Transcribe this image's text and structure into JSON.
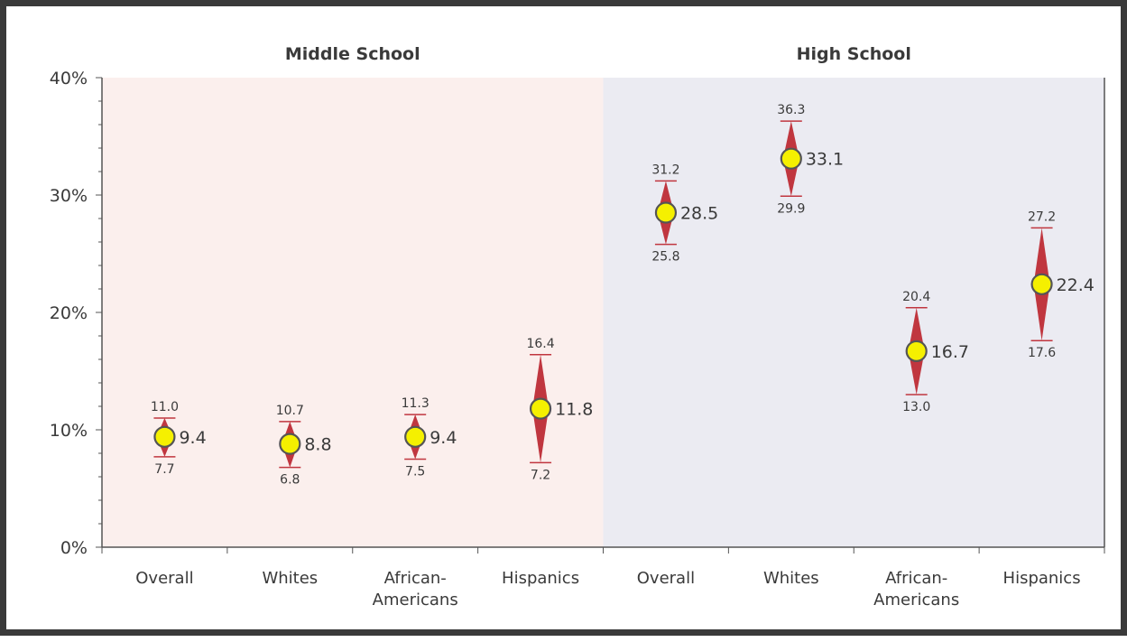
{
  "chart_data": {
    "type": "scatter",
    "ylim": [
      0,
      40
    ],
    "yticks": [
      "0%",
      "10%",
      "20%",
      "30%",
      "40%"
    ],
    "y_tick_values": [
      0,
      10,
      20,
      30,
      40
    ],
    "groups": [
      {
        "title": "Middle School",
        "background": "#fbefed",
        "categories": [
          "Overall",
          "Whites",
          "African-Americans",
          "Hispanics"
        ],
        "points": [
          {
            "category": "Overall",
            "value": 9.4,
            "lower": 7.7,
            "upper": 11.0
          },
          {
            "category": "Whites",
            "value": 8.8,
            "lower": 6.8,
            "upper": 10.7
          },
          {
            "category": "African-Americans",
            "value": 9.4,
            "lower": 7.5,
            "upper": 11.3
          },
          {
            "category": "Hispanics",
            "value": 11.8,
            "lower": 7.2,
            "upper": 16.4
          }
        ]
      },
      {
        "title": "High School",
        "background": "#ebebf2",
        "categories": [
          "Overall",
          "Whites",
          "African-Americans",
          "Hispanics"
        ],
        "points": [
          {
            "category": "Overall",
            "value": 28.5,
            "lower": 25.8,
            "upper": 31.2
          },
          {
            "category": "Whites",
            "value": 33.1,
            "lower": 29.9,
            "upper": 36.3
          },
          {
            "category": "African-Americans",
            "value": 16.7,
            "lower": 13.0,
            "upper": 20.4
          },
          {
            "category": "Hispanics",
            "value": 22.4,
            "lower": 17.6,
            "upper": 27.2
          }
        ]
      }
    ],
    "colors": {
      "diamond": "#c0363f",
      "marker_fill": "#f5f000",
      "marker_stroke": "#555555",
      "axis": "#555555",
      "text": "#3a3a3a"
    }
  }
}
